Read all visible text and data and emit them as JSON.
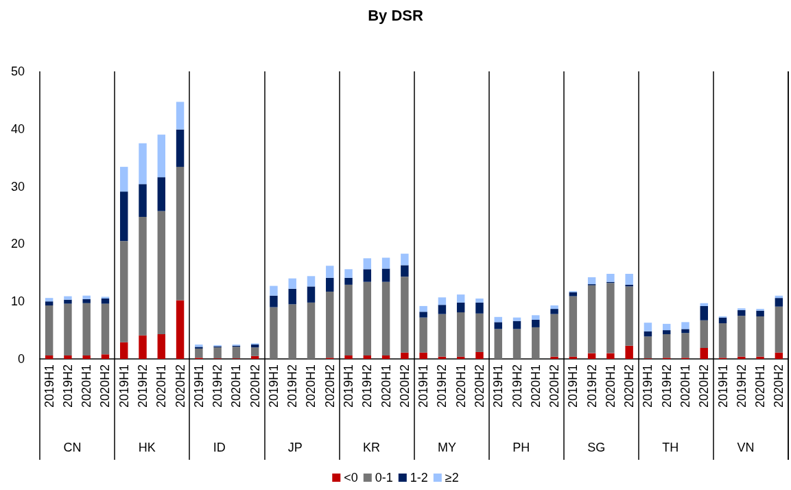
{
  "chart_data": {
    "type": "bar",
    "title": "By DSR",
    "stacked": true,
    "grid": false,
    "legend": "bottom",
    "categories": [
      "2019H1",
      "2019H2",
      "2020H1",
      "2020H2",
      "2019H1",
      "2019H2",
      "2020H1",
      "2020H2",
      "2019H1",
      "2019H2",
      "2020H1",
      "2020H2",
      "2019H1",
      "2019H2",
      "2020H1",
      "2020H2",
      "2019H1",
      "2019H2",
      "2020H1",
      "2020H2",
      "2019H1",
      "2019H2",
      "2020H1",
      "2020H2",
      "2019H1",
      "2019H2",
      "2020H1",
      "2020H2",
      "2019H1",
      "2019H2",
      "2020H1",
      "2020H2",
      "2019H1",
      "2019H2",
      "2020H1",
      "2020H2",
      "2019H1",
      "2019H2",
      "2020H1",
      "2020H2"
    ],
    "annotations": [
      "CN",
      "HK",
      "ID",
      "JP",
      "KR",
      "MY",
      "PH",
      "SG",
      "TH",
      "VN"
    ],
    "ylim": [
      0,
      50
    ],
    "yticks": [
      0,
      10,
      20,
      30,
      40,
      50
    ],
    "series": [
      {
        "name": "<0",
        "color": "#c00000",
        "values": [
          0.6,
          0.6,
          0.6,
          0.8,
          2.9,
          4.1,
          4.3,
          10.2,
          0.2,
          0.1,
          0.1,
          0.5,
          0,
          0,
          0,
          0.2,
          0.6,
          0.6,
          0.6,
          1.1,
          1.1,
          0.4,
          0.4,
          1.2,
          0,
          0,
          0,
          0.4,
          0.4,
          1.0,
          1.0,
          2.3,
          0.1,
          0.2,
          0.2,
          1.9,
          0.2,
          0.4,
          0.4,
          1.1
        ]
      },
      {
        "name": "0-1",
        "color": "#767676",
        "values": [
          8.7,
          9.0,
          9.1,
          8.8,
          17.6,
          20.6,
          21.4,
          23.2,
          1.6,
          1.9,
          2.0,
          1.5,
          9.0,
          9.5,
          9.8,
          11.5,
          12.3,
          12.8,
          12.8,
          13.2,
          6.1,
          7.4,
          7.7,
          6.7,
          5.2,
          5.2,
          5.5,
          7.4,
          10.5,
          11.8,
          12.2,
          10.3,
          3.8,
          4.1,
          4.3,
          4.8,
          6.0,
          7.1,
          7.0,
          8.0
        ]
      },
      {
        "name": "1-2",
        "color": "#002060",
        "values": [
          0.7,
          0.7,
          0.7,
          0.9,
          8.6,
          5.7,
          5.9,
          6.5,
          0.3,
          0.2,
          0.2,
          0.5,
          2.0,
          2.7,
          2.8,
          2.4,
          1.2,
          2.2,
          2.3,
          2.0,
          1.0,
          1.6,
          1.7,
          1.9,
          1.2,
          1.4,
          1.3,
          0.9,
          0.7,
          0.2,
          0.2,
          0.3,
          0.9,
          0.7,
          0.7,
          2.5,
          1.0,
          1.0,
          1.0,
          1.5
        ]
      },
      {
        "name": "≥2",
        "color": "#9dc3ff",
        "values": [
          0.6,
          0.6,
          0.6,
          0.3,
          4.3,
          7.1,
          7.4,
          4.8,
          0.4,
          0.2,
          0.2,
          0.2,
          1.7,
          1.8,
          1.8,
          2.1,
          1.5,
          1.9,
          1.9,
          2.0,
          1.0,
          1.3,
          1.4,
          0.7,
          0.9,
          0.6,
          0.8,
          0.6,
          0.2,
          1.2,
          1.4,
          1.9,
          1.5,
          1.1,
          1.2,
          0.5,
          0.2,
          0.3,
          0.3,
          0.4
        ]
      }
    ]
  }
}
